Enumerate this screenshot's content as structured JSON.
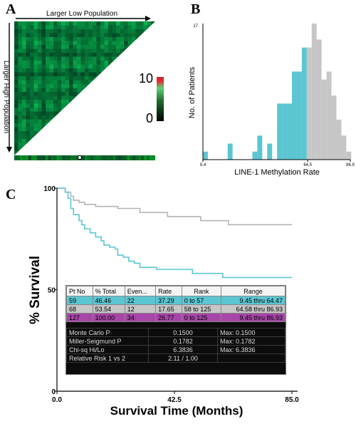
{
  "panels": {
    "a": "A",
    "b": "B",
    "c": "C"
  },
  "heatmap": {
    "top_label": "Larger Low Population",
    "side_label": "Larger High Population",
    "colorbar_max": "10",
    "colorbar_min": "0",
    "colors": {
      "low": "#000000",
      "mid": "#1f8a3c",
      "high": "#9fe2b0",
      "bar_top": "#cc2020"
    }
  },
  "chart_data": [
    {
      "type": "bar",
      "ylabel": "No. of Patients",
      "xlabel": "LINE-1 Methylation Rate",
      "ytick_top": "17",
      "xticks": [
        "9.4",
        "64.5",
        "86.9"
      ],
      "xlim": [
        9.4,
        86.9
      ],
      "ylim": [
        0,
        17
      ],
      "bin_width": 2.6,
      "cutoff": 64.5,
      "colors": {
        "low": "#5bc6d2",
        "high": "#c6c6c6"
      },
      "bins": [
        {
          "x": 9.4,
          "value": 1,
          "group": "low"
        },
        {
          "x": 22.4,
          "value": 2,
          "group": "low"
        },
        {
          "x": 35.4,
          "value": 1,
          "group": "low"
        },
        {
          "x": 43.2,
          "value": 2,
          "group": "low"
        },
        {
          "x": 48.4,
          "value": 7,
          "group": "low"
        },
        {
          "x": 51.0,
          "value": 7,
          "group": "low"
        },
        {
          "x": 53.6,
          "value": 7,
          "group": "low"
        },
        {
          "x": 56.2,
          "value": 11,
          "group": "low"
        },
        {
          "x": 58.8,
          "value": 11,
          "group": "low"
        },
        {
          "x": 61.4,
          "value": 14,
          "group": "low"
        },
        {
          "x": 64.0,
          "value": 14,
          "group": "high"
        },
        {
          "x": 66.6,
          "value": 17,
          "group": "high"
        },
        {
          "x": 69.2,
          "value": 15,
          "group": "high"
        },
        {
          "x": 71.8,
          "value": 10,
          "group": "high"
        },
        {
          "x": 74.4,
          "value": 11,
          "group": "high"
        },
        {
          "x": 77.0,
          "value": 8,
          "group": "high"
        },
        {
          "x": 79.6,
          "value": 5,
          "group": "high"
        },
        {
          "x": 82.2,
          "value": 3,
          "group": "high"
        },
        {
          "x": 84.8,
          "value": 1,
          "group": "high"
        }
      ],
      "low_fill_bins": [
        {
          "x": 38.0,
          "value": 3
        }
      ]
    },
    {
      "type": "line",
      "ylabel": "% Survival",
      "xlabel": "Survival Time (Months)",
      "xticks": [
        "0.0",
        "42.5",
        "85.0"
      ],
      "yticks": [
        "100",
        "50",
        "0"
      ],
      "xlim": [
        0,
        85
      ],
      "ylim": [
        0,
        100
      ],
      "series": [
        {
          "color": "#b4b4b4",
          "points": [
            [
              0,
              100
            ],
            [
              3,
              98
            ],
            [
              5,
              96
            ],
            [
              6,
              94
            ],
            [
              8,
              93
            ],
            [
              10,
              92
            ],
            [
              14,
              91
            ],
            [
              22,
              90
            ],
            [
              30,
              88
            ],
            [
              40,
              86
            ],
            [
              52,
              84
            ],
            [
              62,
              82
            ],
            [
              80,
              82
            ],
            [
              85,
              82
            ]
          ]
        },
        {
          "color": "#5bc6d2",
          "points": [
            [
              0,
              100
            ],
            [
              3,
              98
            ],
            [
              4,
              95
            ],
            [
              5,
              90
            ],
            [
              6,
              87
            ],
            [
              8,
              84
            ],
            [
              9,
              82
            ],
            [
              10,
              80
            ],
            [
              12,
              78
            ],
            [
              14,
              76
            ],
            [
              16,
              74
            ],
            [
              17,
              72
            ],
            [
              19,
              71
            ],
            [
              21,
              70
            ],
            [
              22,
              67
            ],
            [
              24,
              66
            ],
            [
              26,
              64
            ],
            [
              28,
              63
            ],
            [
              30,
              61
            ],
            [
              32,
              61
            ],
            [
              36,
              60
            ],
            [
              40,
              60
            ],
            [
              47,
              60
            ],
            [
              49,
              58
            ],
            [
              58,
              58
            ],
            [
              60,
              56
            ],
            [
              85,
              56
            ]
          ]
        }
      ]
    }
  ],
  "table": {
    "headers": [
      "Pt No",
      "% Total",
      "Even...",
      "Rate",
      "Rank",
      "Range"
    ],
    "rows": [
      {
        "pt": "59",
        "pct": "46.46",
        "events": "22",
        "rate": "37.29",
        "rank": "0 to 57",
        "range": "9.45 thru 64.47",
        "color": "#5bc6d2"
      },
      {
        "pt": "68",
        "pct": "53.54",
        "events": "12",
        "rate": "17.65",
        "rank": "58 to 125",
        "range": "64.58 thru 86.93",
        "color": "#c6c6c6"
      },
      {
        "pt": "127",
        "pct": "100.00",
        "events": "34",
        "rate": "26.77",
        "rank": "0 to 125",
        "range": "9.45 thru 86.93",
        "color": "#a845a8"
      }
    ],
    "stats": [
      {
        "label": "Monte Carlo P",
        "value": "0.1500",
        "max": "Max: 0.1500"
      },
      {
        "label": "Miller-Seigmund P",
        "value": "0.1782",
        "max": "Max: 0.1782"
      },
      {
        "label": "Chi-sq Hi/Lo",
        "value": "6.3836",
        "max": "Max: 6.3836"
      },
      {
        "label": "Relative Risk 1 vs 2",
        "value": "2.11 / 1.00",
        "max": ""
      }
    ]
  }
}
